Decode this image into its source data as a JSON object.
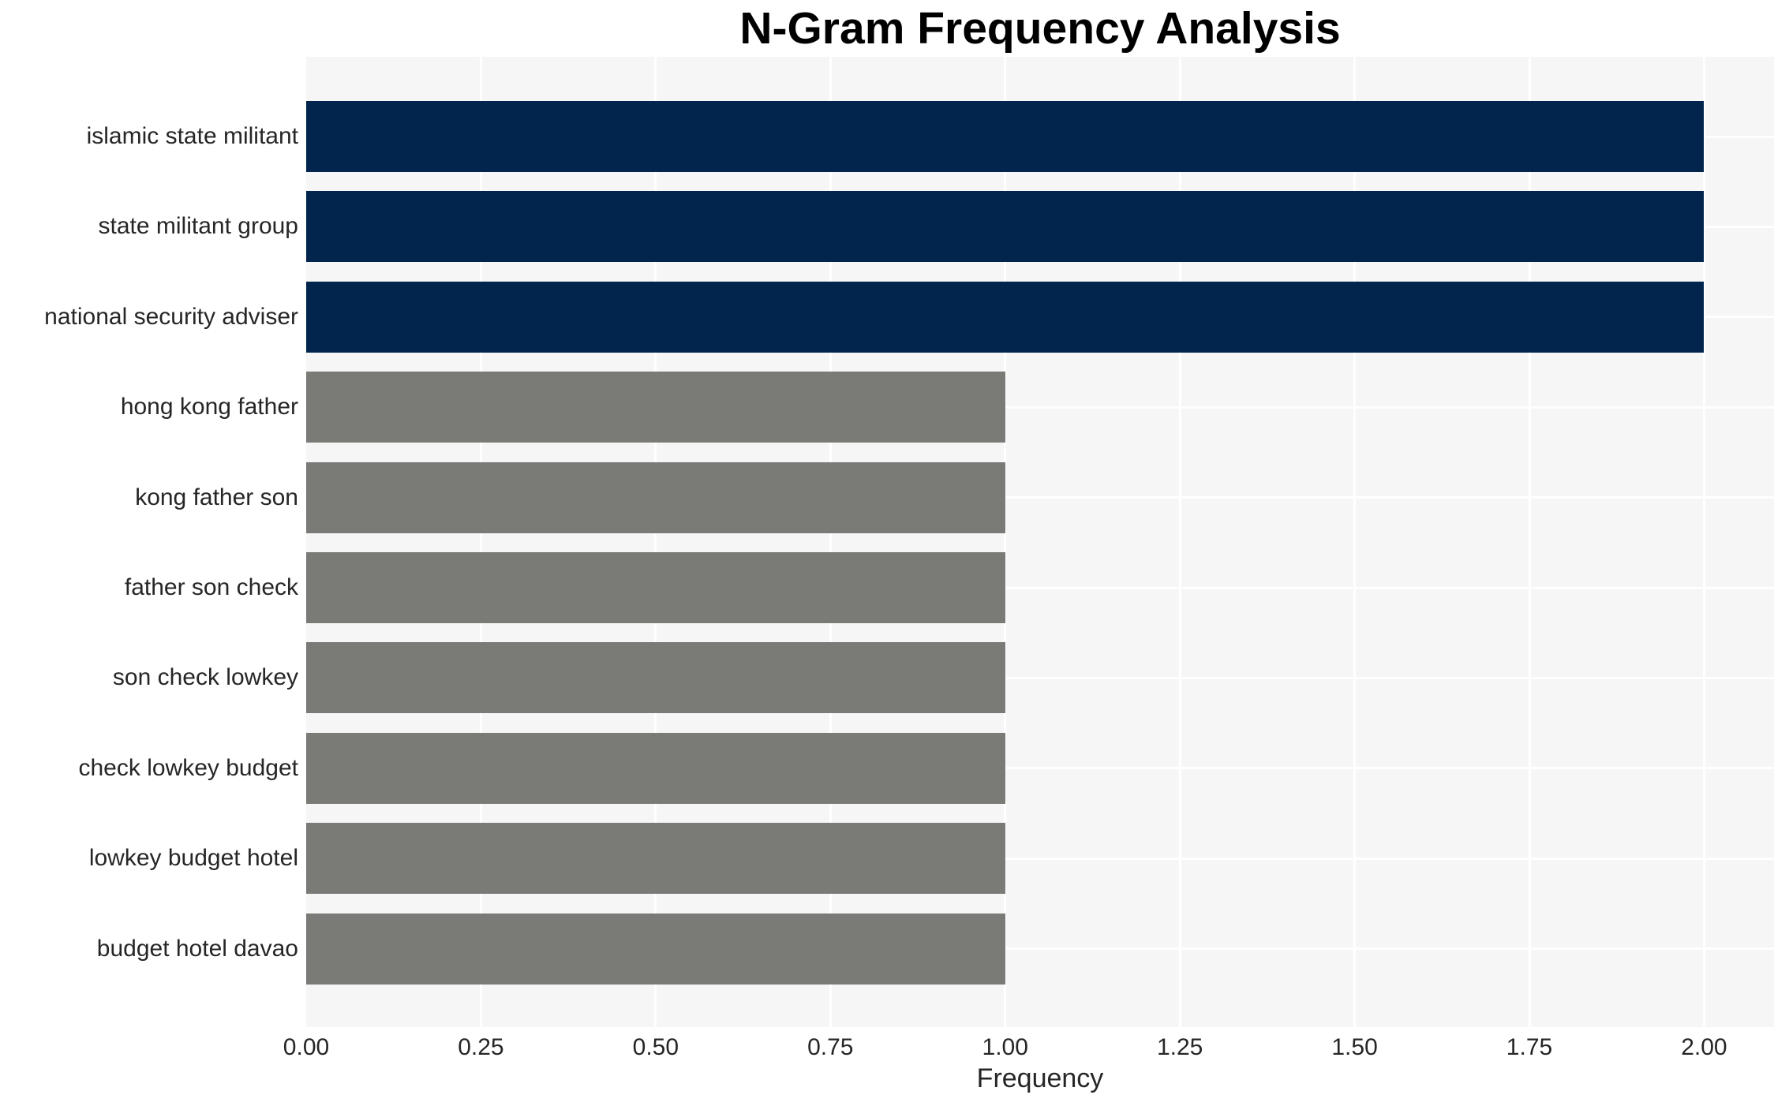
{
  "chart_data": {
    "type": "bar",
    "orientation": "horizontal",
    "title": "N-Gram Frequency Analysis",
    "xlabel": "Frequency",
    "ylabel": "",
    "categories": [
      "islamic state militant",
      "state militant group",
      "national security adviser",
      "hong kong father",
      "kong father son",
      "father son check",
      "son check lowkey",
      "check lowkey budget",
      "lowkey budget hotel",
      "budget hotel davao"
    ],
    "values": [
      2,
      2,
      2,
      1,
      1,
      1,
      1,
      1,
      1,
      1
    ],
    "bar_colors": [
      "#02254d",
      "#02254d",
      "#02254d",
      "#7a7a77",
      "#7a7a77",
      "#7a7a77",
      "#7a7a77",
      "#7a7a77",
      "#7a7a77",
      "#7a7a77"
    ],
    "xlim": [
      0,
      2.1
    ],
    "xticks": [
      0.0,
      0.25,
      0.5,
      0.75,
      1.0,
      1.25,
      1.5,
      1.75,
      2.0
    ],
    "xtick_labels": [
      "0.00",
      "0.25",
      "0.50",
      "0.75",
      "1.00",
      "1.25",
      "1.50",
      "1.75",
      "2.00"
    ],
    "grid": true,
    "legend": null,
    "colors": {
      "highlight_bar": "#02254d",
      "normal_bar": "#7a7a77",
      "plot_background": "#f6f6f6",
      "gridline": "#ffffff",
      "figure_background": "#ffffff",
      "tick_text": "#262626",
      "title_text": "#000000"
    }
  }
}
